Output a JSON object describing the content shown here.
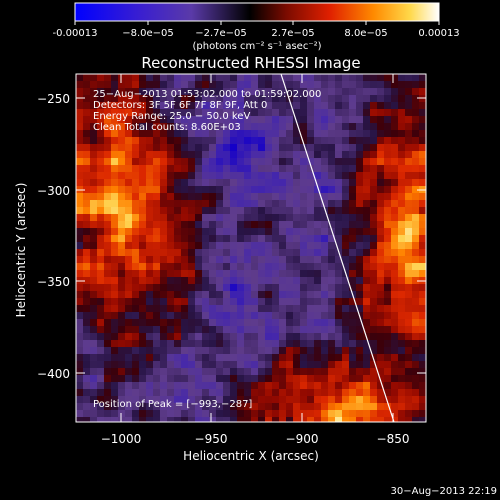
{
  "colorbar": {
    "tick_labels": [
      "-0.00013",
      "−8.0e−05",
      "−2.7e−05",
      "2.7e−05",
      "8.0e−05",
      "0.00013"
    ],
    "units_line": "(photons cm⁻² s⁻¹ asec⁻²)"
  },
  "title": "Reconstructed RHESSI Image",
  "info": {
    "line1": "25−Aug−2013 01:53:02.000 to 01:59:02.000",
    "line2": "Detectors: 3F 5F 6F 7F 8F 9F, Att 0",
    "line3": "Energy Range: 25.0 − 50.0 keV",
    "line4": "Clean     Total counts: 8.60E+03"
  },
  "peak": "Position of Peak = [−993,−287]",
  "axes": {
    "xlabel": "Heliocentric X (arcsec)",
    "ylabel": "Heliocentric Y (arcsec)",
    "xticks": [
      "−1000",
      "−950",
      "−900",
      "−850"
    ],
    "yticks": [
      "−250",
      "−300",
      "−350",
      "−400"
    ],
    "xrange": [
      -1025,
      -833
    ],
    "yrange": [
      -427,
      -238
    ]
  },
  "footer": {
    "date": "30−Aug−2013 22:19"
  },
  "colors": {
    "background": "#000000",
    "limb_line": "#ffffff"
  }
}
